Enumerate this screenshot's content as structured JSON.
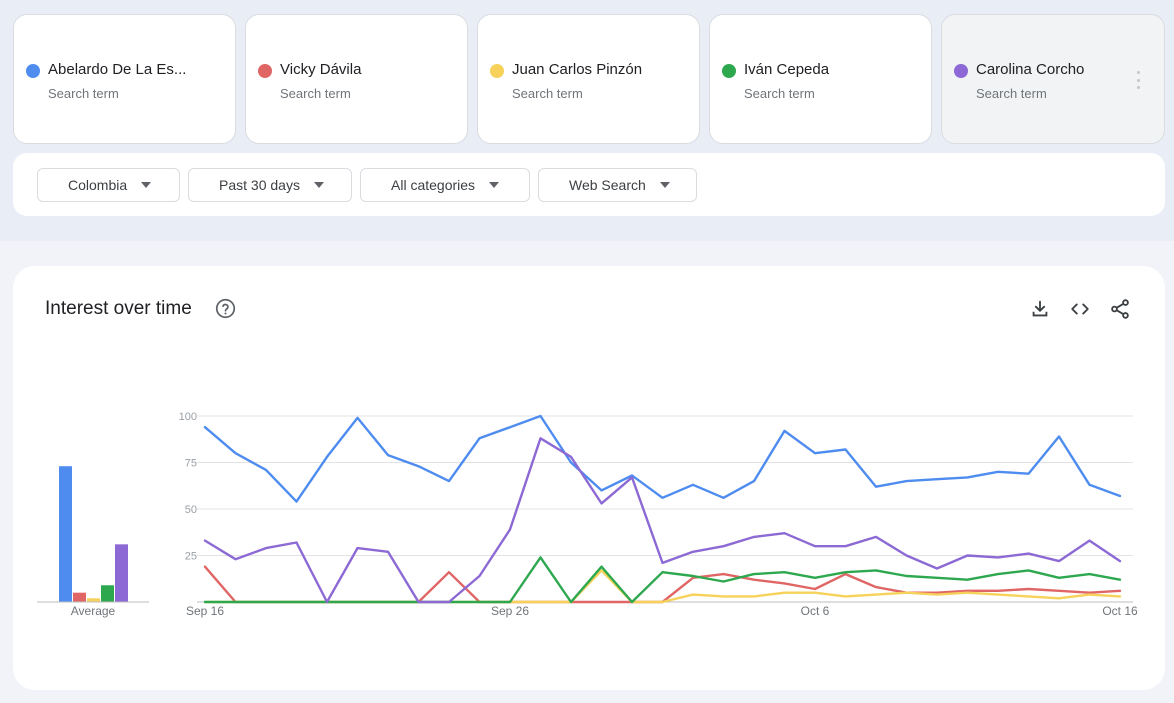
{
  "search_terms": [
    {
      "label": "Abelardo De La Es...",
      "sublabel": "Search term",
      "color": "#4e8cf0"
    },
    {
      "label": "Vicky Dávila",
      "sublabel": "Search term",
      "color": "#e06666"
    },
    {
      "label": "Juan Carlos Pinzón",
      "sublabel": "Search term",
      "color": "#f6d25a"
    },
    {
      "label": "Iván Cepeda",
      "sublabel": "Search term",
      "color": "#2ea84f"
    },
    {
      "label": "Carolina Corcho",
      "sublabel": "Search term",
      "color": "#8c69d4"
    }
  ],
  "filters": {
    "region": "Colombia",
    "time": "Past 30 days",
    "category": "All categories",
    "property": "Web Search"
  },
  "card": {
    "title": "Interest over time",
    "average_label": "Average"
  },
  "chart_data": {
    "type": "line",
    "x": [
      "Sep 16",
      "Sep 17",
      "Sep 18",
      "Sep 19",
      "Sep 20",
      "Sep 21",
      "Sep 22",
      "Sep 23",
      "Sep 24",
      "Sep 25",
      "Sep 26",
      "Sep 27",
      "Sep 28",
      "Sep 29",
      "Sep 30",
      "Oct 1",
      "Oct 2",
      "Oct 3",
      "Oct 4",
      "Oct 5",
      "Oct 6",
      "Oct 7",
      "Oct 8",
      "Oct 9",
      "Oct 10",
      "Oct 11",
      "Oct 12",
      "Oct 13",
      "Oct 14",
      "Oct 15",
      "Oct 16"
    ],
    "x_tick_labels": [
      "Sep 16",
      "Sep 26",
      "Oct 6",
      "Oct 16"
    ],
    "y_ticks": [
      "100",
      "75",
      "50",
      "25"
    ],
    "ylim": [
      0,
      100
    ],
    "grid": true,
    "series": [
      {
        "name": "Abelardo De La Es...",
        "color": "#4e8cf0",
        "values": [
          94,
          80,
          71,
          54,
          78,
          99,
          79,
          73,
          65,
          88,
          94,
          100,
          75,
          60,
          68,
          56,
          63,
          56,
          65,
          92,
          80,
          82,
          62,
          65,
          66,
          67,
          70,
          69,
          89,
          63,
          57
        ],
        "average": 73
      },
      {
        "name": "Vicky Dávila",
        "color": "#e06666",
        "values": [
          19,
          0,
          0,
          0,
          0,
          0,
          0,
          0,
          16,
          0,
          0,
          0,
          0,
          0,
          0,
          0,
          13,
          15,
          12,
          10,
          7,
          15,
          8,
          5,
          5,
          6,
          6,
          7,
          6,
          5,
          6
        ],
        "average": 5
      },
      {
        "name": "Juan Carlos Pinzón",
        "color": "#f6d25a",
        "values": [
          0,
          0,
          0,
          0,
          0,
          0,
          0,
          0,
          0,
          0,
          0,
          0,
          0,
          17,
          0,
          0,
          4,
          3,
          3,
          5,
          5,
          3,
          4,
          5,
          4,
          5,
          4,
          3,
          2,
          4,
          3
        ],
        "average": 2
      },
      {
        "name": "Iván Cepeda",
        "color": "#2ea84f",
        "values": [
          0,
          0,
          0,
          0,
          0,
          0,
          0,
          0,
          0,
          0,
          0,
          24,
          0,
          19,
          0,
          16,
          14,
          11,
          15,
          16,
          13,
          16,
          17,
          14,
          13,
          12,
          15,
          17,
          13,
          15,
          12
        ],
        "average": 9
      },
      {
        "name": "Carolina Corcho",
        "color": "#8c69d4",
        "values": [
          33,
          23,
          29,
          32,
          0,
          29,
          27,
          0,
          0,
          14,
          39,
          88,
          78,
          53,
          67,
          21,
          27,
          30,
          35,
          37,
          30,
          30,
          35,
          25,
          18,
          25,
          24,
          26,
          22,
          33,
          22
        ],
        "average": 31
      }
    ]
  }
}
